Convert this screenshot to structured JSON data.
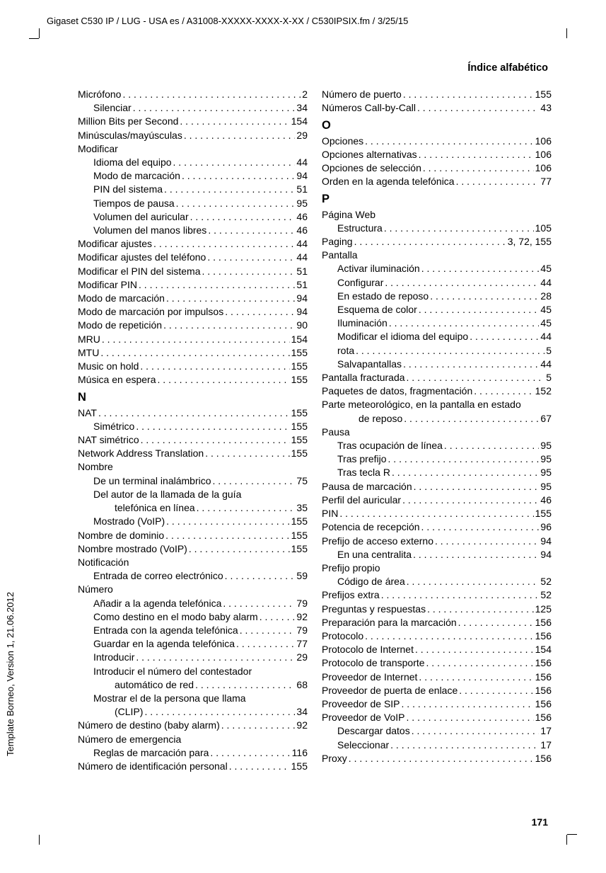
{
  "header_path": "Gigaset C530 IP / LUG - USA es / A31008-XXXXX-XXXX-X-XX / C530IPSIX.fm / 3/25/15",
  "section_title": "Índice alfabético",
  "vertical_text": "Template Borneo, Version 1, 21.06.2012",
  "page_number": "171",
  "left_column": {
    "entries": [
      {
        "label": "Micrófono",
        "page": "2",
        "indent": 0
      },
      {
        "label": "Silenciar",
        "page": "34",
        "indent": 1
      },
      {
        "label": "Million Bits per Second",
        "page": "154",
        "indent": 0
      },
      {
        "label": "Minúsculas/mayúsculas",
        "page": "29",
        "indent": 0
      },
      {
        "label": "Modificar",
        "page": "",
        "indent": 0,
        "nodots": true
      },
      {
        "label": "Idioma del equipo",
        "page": "44",
        "indent": 1
      },
      {
        "label": "Modo de marcación",
        "page": "94",
        "indent": 1
      },
      {
        "label": "PIN del sistema",
        "page": "51",
        "indent": 1
      },
      {
        "label": "Tiempos de pausa",
        "page": "95",
        "indent": 1
      },
      {
        "label": "Volumen del auricular",
        "page": "46",
        "indent": 1
      },
      {
        "label": "Volumen del manos libres",
        "page": "46",
        "indent": 1
      },
      {
        "label": "Modificar ajustes",
        "page": "44",
        "indent": 0
      },
      {
        "label": "Modificar ajustes del teléfono",
        "page": "44",
        "indent": 0
      },
      {
        "label": "Modificar el PIN del sistema",
        "page": "51",
        "indent": 0
      },
      {
        "label": "Modificar PIN",
        "page": "51",
        "indent": 0
      },
      {
        "label": "Modo de marcación",
        "page": "94",
        "indent": 0
      },
      {
        "label": "Modo de marcación por impulsos",
        "page": "94",
        "indent": 0
      },
      {
        "label": "Modo de repetición",
        "page": "90",
        "indent": 0
      },
      {
        "label": "MRU",
        "page": "154",
        "indent": 0
      },
      {
        "label": "MTU",
        "page": "155",
        "indent": 0
      },
      {
        "label": "Music on hold",
        "page": "155",
        "indent": 0
      },
      {
        "label": "Música en espera",
        "page": "155",
        "indent": 0
      }
    ],
    "section_N": "N",
    "entries_N": [
      {
        "label": "NAT",
        "page": "155",
        "indent": 0
      },
      {
        "label": "Simétrico",
        "page": "155",
        "indent": 1
      },
      {
        "label": "NAT simétrico",
        "page": "155",
        "indent": 0
      },
      {
        "label": "Network Address Translation",
        "page": "155",
        "indent": 0
      },
      {
        "label": "Nombre",
        "page": "",
        "indent": 0,
        "nodots": true
      },
      {
        "label": "De un terminal inalámbrico",
        "page": "75",
        "indent": 1
      },
      {
        "label": "Del autor de la llamada de la guía",
        "page": "",
        "indent": 1,
        "nodots": true
      },
      {
        "label": "telefónica en línea",
        "page": "35",
        "indent": 2
      },
      {
        "label": "Mostrado (VoIP)",
        "page": "155",
        "indent": 1
      },
      {
        "label": "Nombre de dominio",
        "page": "155",
        "indent": 0
      },
      {
        "label": "Nombre mostrado (VoIP)",
        "page": "155",
        "indent": 0
      },
      {
        "label": "Notificación",
        "page": "",
        "indent": 0,
        "nodots": true
      },
      {
        "label": "Entrada de correo electrónico",
        "page": "59",
        "indent": 1
      },
      {
        "label": "Número",
        "page": "",
        "indent": 0,
        "nodots": true
      },
      {
        "label": "Añadir a la agenda telefónica",
        "page": "79",
        "indent": 1
      },
      {
        "label": "Como destino en el modo baby alarm",
        "page": "92",
        "indent": 1
      },
      {
        "label": "Entrada con la agenda telefónica",
        "page": "79",
        "indent": 1
      },
      {
        "label": "Guardar en la agenda telefónica",
        "page": "77",
        "indent": 1
      },
      {
        "label": "Introducir",
        "page": "29",
        "indent": 1
      },
      {
        "label": "Introducir el número del contestador",
        "page": "",
        "indent": 1,
        "nodots": true
      },
      {
        "label": "automático de red",
        "page": "68",
        "indent": 2
      },
      {
        "label": "Mostrar el de la persona que llama",
        "page": "",
        "indent": 1,
        "nodots": true
      },
      {
        "label": "(CLIP)",
        "page": "34",
        "indent": 2
      },
      {
        "label": "Número de destino (baby alarm)",
        "page": "92",
        "indent": 0
      },
      {
        "label": "Número de emergencia",
        "page": "",
        "indent": 0,
        "nodots": true
      },
      {
        "label": "Reglas de marcación para",
        "page": "116",
        "indent": 1
      },
      {
        "label": "Número de identificación personal",
        "page": "155",
        "indent": 0
      }
    ]
  },
  "right_column": {
    "entries_top": [
      {
        "label": "Número de puerto",
        "page": "155",
        "indent": 0
      },
      {
        "label": "Números Call-by-Call",
        "page": "43",
        "indent": 0
      }
    ],
    "section_O": "O",
    "entries_O": [
      {
        "label": "Opciones",
        "page": "106",
        "indent": 0
      },
      {
        "label": "Opciones alternativas",
        "page": "106",
        "indent": 0
      },
      {
        "label": "Opciones de selección",
        "page": "106",
        "indent": 0
      },
      {
        "label": "Orden en la agenda telefónica",
        "page": "77",
        "indent": 0
      }
    ],
    "section_P": "P",
    "entries_P": [
      {
        "label": "Página Web",
        "page": "",
        "indent": 0,
        "nodots": true
      },
      {
        "label": "Estructura",
        "page": "105",
        "indent": 1
      },
      {
        "label": "Paging",
        "page": "3, 72, 155",
        "indent": 0
      },
      {
        "label": "Pantalla",
        "page": "",
        "indent": 0,
        "nodots": true
      },
      {
        "label": "Activar iluminación",
        "page": "45",
        "indent": 1
      },
      {
        "label": "Configurar",
        "page": "44",
        "indent": 1
      },
      {
        "label": "En estado de reposo",
        "page": "28",
        "indent": 1
      },
      {
        "label": "Esquema de color",
        "page": "45",
        "indent": 1
      },
      {
        "label": "Iluminación",
        "page": "45",
        "indent": 1
      },
      {
        "label": "Modificar el idioma del equipo",
        "page": "44",
        "indent": 1
      },
      {
        "label": "rota",
        "page": "5",
        "indent": 1
      },
      {
        "label": "Salvapantallas",
        "page": "44",
        "indent": 1
      },
      {
        "label": "Pantalla fracturada",
        "page": "5",
        "indent": 0
      },
      {
        "label": "Paquetes de datos, fragmentación",
        "page": "152",
        "indent": 0
      },
      {
        "label": "Parte meteorológico, en la pantalla en estado",
        "page": "",
        "indent": 0,
        "nodots": true
      },
      {
        "label": "de reposo",
        "page": "67",
        "indent": 2
      },
      {
        "label": "Pausa",
        "page": "",
        "indent": 0,
        "nodots": true
      },
      {
        "label": "Tras ocupación de línea",
        "page": "95",
        "indent": 1
      },
      {
        "label": "Tras prefijo",
        "page": "95",
        "indent": 1
      },
      {
        "label": "Tras tecla R",
        "page": "95",
        "indent": 1
      },
      {
        "label": "Pausa de marcación",
        "page": "95",
        "indent": 0
      },
      {
        "label": "Perfil del auricular",
        "page": "46",
        "indent": 0
      },
      {
        "label": "PIN",
        "page": "155",
        "indent": 0
      },
      {
        "label": "Potencia de recepción",
        "page": "96",
        "indent": 0
      },
      {
        "label": "Prefijo de acceso externo",
        "page": "94",
        "indent": 0
      },
      {
        "label": "En una centralita",
        "page": "94",
        "indent": 1
      },
      {
        "label": "Prefijo propio",
        "page": "",
        "indent": 0,
        "nodots": true
      },
      {
        "label": "Código de área",
        "page": "52",
        "indent": 1
      },
      {
        "label": "Prefijos extra",
        "page": "52",
        "indent": 0
      },
      {
        "label": "Preguntas y respuestas",
        "page": "125",
        "indent": 0
      },
      {
        "label": "Preparación para la marcación",
        "page": "156",
        "indent": 0
      },
      {
        "label": "Protocolo",
        "page": "156",
        "indent": 0
      },
      {
        "label": "Protocolo de Internet",
        "page": "154",
        "indent": 0
      },
      {
        "label": "Protocolo de transporte",
        "page": "156",
        "indent": 0
      },
      {
        "label": "Proveedor de Internet",
        "page": "156",
        "indent": 0
      },
      {
        "label": "Proveedor de puerta de enlace",
        "page": "156",
        "indent": 0
      },
      {
        "label": "Proveedor de SIP",
        "page": "156",
        "indent": 0
      },
      {
        "label": "Proveedor de VoIP",
        "page": "156",
        "indent": 0
      },
      {
        "label": "Descargar datos",
        "page": "17",
        "indent": 1
      },
      {
        "label": "Seleccionar",
        "page": "17",
        "indent": 1
      },
      {
        "label": "Proxy",
        "page": "156",
        "indent": 0
      }
    ]
  }
}
